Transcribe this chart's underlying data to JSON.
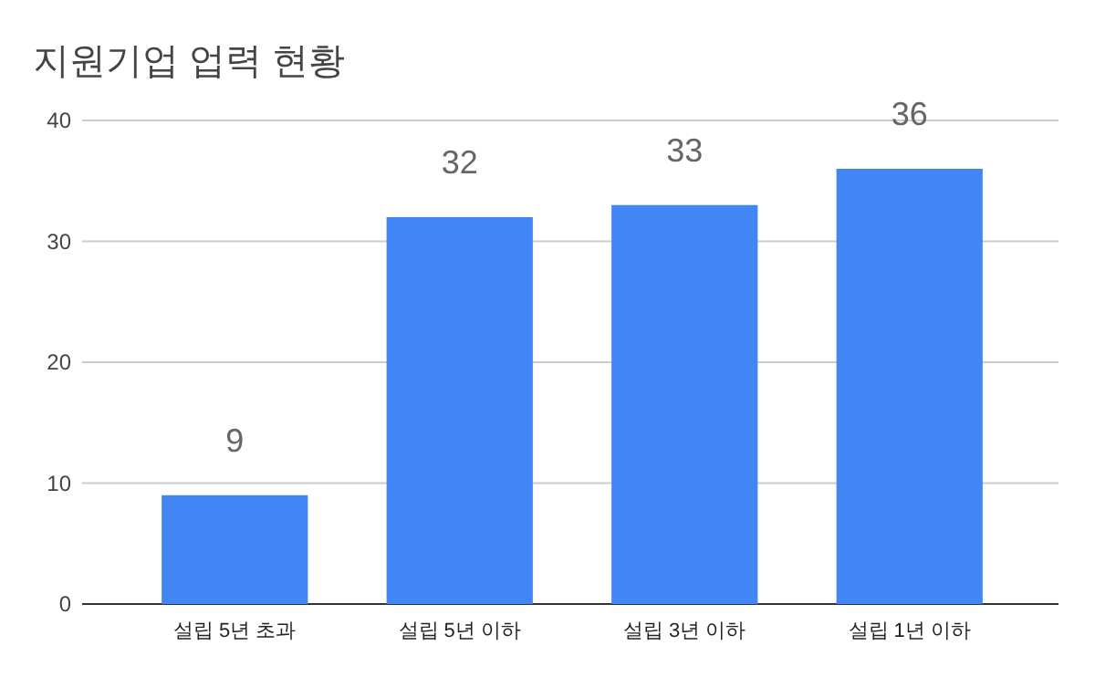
{
  "chart_data": {
    "type": "bar",
    "title": "지원기업 업력 현황",
    "categories": [
      "설립 5년 초과",
      "설립 5년 이하",
      "설립 3년 이하",
      "설립 1년 이하"
    ],
    "values": [
      9,
      32,
      33,
      36
    ],
    "color": "#4285f4",
    "ylim": [
      0,
      40
    ],
    "yticks": [
      0,
      10,
      20,
      30,
      40
    ],
    "grid": "y",
    "data_labels": true
  }
}
